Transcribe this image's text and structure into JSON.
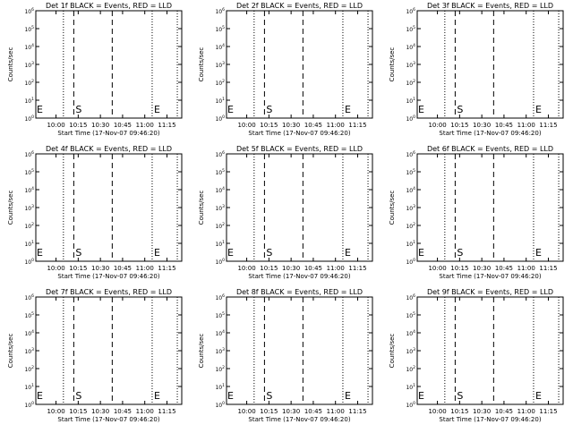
{
  "figure": {
    "colors": {
      "background": "#ffffff",
      "axes": "#000000",
      "events": "#000000",
      "lld": "#ff0000"
    }
  },
  "chart_data": [
    {
      "type": "line",
      "title": "Det 1f BLACK = Events, RED = LLD",
      "xlabel": "Start Time (17-Nov-07 09:46:20)",
      "ylabel": "Counts/sec",
      "x_ticks": [
        "10:00",
        "10:15",
        "10:30",
        "10:45",
        "11:00",
        "11:15"
      ],
      "y_ticks": [
        "10^0",
        "10^1",
        "10^2",
        "10^3",
        "10^4",
        "10^5",
        "10^6"
      ],
      "y_scale": "log",
      "ylim": [
        1,
        1000000
      ],
      "xlim": [
        "09:46:20",
        "11:25:00"
      ],
      "markers": [
        {
          "time": "10:05",
          "style": "dotted"
        },
        {
          "time": "10:12",
          "style": "dashed",
          "label": "S"
        },
        {
          "time": "10:38",
          "style": "dashed"
        },
        {
          "time": "11:05",
          "style": "dotted",
          "label": "E"
        },
        {
          "time": "11:22",
          "style": "dotted"
        }
      ],
      "annotations": [
        "E"
      ],
      "series": []
    },
    {
      "type": "line",
      "title": "Det 2f BLACK = Events, RED = LLD",
      "xlabel": "Start Time (17-Nov-07 09:46:20)",
      "ylabel": "Counts/sec",
      "x_ticks": [
        "10:00",
        "10:15",
        "10:30",
        "10:45",
        "11:00",
        "11:15"
      ],
      "y_ticks": [
        "10^0",
        "10^1",
        "10^2",
        "10^3",
        "10^4",
        "10^5",
        "10^6"
      ],
      "y_scale": "log",
      "ylim": [
        1,
        1000000
      ],
      "xlim": [
        "09:46:20",
        "11:25:00"
      ],
      "markers": [
        {
          "time": "10:05",
          "style": "dotted"
        },
        {
          "time": "10:12",
          "style": "dashed",
          "label": "S"
        },
        {
          "time": "10:38",
          "style": "dashed"
        },
        {
          "time": "11:05",
          "style": "dotted",
          "label": "E"
        },
        {
          "time": "11:22",
          "style": "dotted"
        }
      ],
      "annotations": [
        "E"
      ],
      "series": []
    },
    {
      "type": "line",
      "title": "Det 3f BLACK = Events, RED = LLD",
      "xlabel": "Start Time (17-Nov-07 09:46:20)",
      "ylabel": "Counts/sec",
      "x_ticks": [
        "10:00",
        "10:15",
        "10:30",
        "10:45",
        "11:00",
        "11:15"
      ],
      "y_ticks": [
        "10^0",
        "10^1",
        "10^2",
        "10^3",
        "10^4",
        "10^5",
        "10^6"
      ],
      "y_scale": "log",
      "ylim": [
        1,
        1000000
      ],
      "xlim": [
        "09:46:20",
        "11:25:00"
      ],
      "markers": [
        {
          "time": "10:05",
          "style": "dotted"
        },
        {
          "time": "10:12",
          "style": "dashed",
          "label": "S"
        },
        {
          "time": "10:38",
          "style": "dashed"
        },
        {
          "time": "11:05",
          "style": "dotted",
          "label": "E"
        },
        {
          "time": "11:22",
          "style": "dotted"
        }
      ],
      "annotations": [
        "E"
      ],
      "series": []
    },
    {
      "type": "line",
      "title": "Det 4f BLACK = Events, RED = LLD",
      "xlabel": "Start Time (17-Nov-07 09:46:20)",
      "ylabel": "Counts/sec",
      "x_ticks": [
        "10:00",
        "10:15",
        "10:30",
        "10:45",
        "11:00",
        "11:15"
      ],
      "y_ticks": [
        "10^0",
        "10^1",
        "10^2",
        "10^3",
        "10^4",
        "10^5",
        "10^6"
      ],
      "y_scale": "log",
      "ylim": [
        1,
        1000000
      ],
      "xlim": [
        "09:46:20",
        "11:25:00"
      ],
      "markers": [
        {
          "time": "10:05",
          "style": "dotted"
        },
        {
          "time": "10:12",
          "style": "dashed",
          "label": "S"
        },
        {
          "time": "10:38",
          "style": "dashed"
        },
        {
          "time": "11:05",
          "style": "dotted",
          "label": "E"
        },
        {
          "time": "11:22",
          "style": "dotted"
        }
      ],
      "annotations": [
        "E"
      ],
      "series": []
    },
    {
      "type": "line",
      "title": "Det 5f BLACK = Events, RED = LLD",
      "xlabel": "Start Time (17-Nov-07 09:46:20)",
      "ylabel": "Counts/sec",
      "x_ticks": [
        "10:00",
        "10:15",
        "10:30",
        "10:45",
        "11:00",
        "11:15"
      ],
      "y_ticks": [
        "10^0",
        "10^1",
        "10^2",
        "10^3",
        "10^4",
        "10^5",
        "10^6"
      ],
      "y_scale": "log",
      "ylim": [
        1,
        1000000
      ],
      "xlim": [
        "09:46:20",
        "11:25:00"
      ],
      "markers": [
        {
          "time": "10:05",
          "style": "dotted"
        },
        {
          "time": "10:12",
          "style": "dashed",
          "label": "S"
        },
        {
          "time": "10:38",
          "style": "dashed"
        },
        {
          "time": "11:05",
          "style": "dotted",
          "label": "E"
        },
        {
          "time": "11:22",
          "style": "dotted"
        }
      ],
      "annotations": [
        "E"
      ],
      "series": []
    },
    {
      "type": "line",
      "title": "Det 6f BLACK = Events, RED = LLD",
      "xlabel": "Start Time (17-Nov-07 09:46:20)",
      "ylabel": "Counts/sec",
      "x_ticks": [
        "10:00",
        "10:15",
        "10:30",
        "10:45",
        "11:00",
        "11:15"
      ],
      "y_ticks": [
        "10^0",
        "10^1",
        "10^2",
        "10^3",
        "10^4",
        "10^5",
        "10^6"
      ],
      "y_scale": "log",
      "ylim": [
        1,
        1000000
      ],
      "xlim": [
        "09:46:20",
        "11:25:00"
      ],
      "markers": [
        {
          "time": "10:05",
          "style": "dotted"
        },
        {
          "time": "10:12",
          "style": "dashed",
          "label": "S"
        },
        {
          "time": "10:38",
          "style": "dashed"
        },
        {
          "time": "11:05",
          "style": "dotted",
          "label": "E"
        },
        {
          "time": "11:22",
          "style": "dotted"
        }
      ],
      "annotations": [
        "E"
      ],
      "series": []
    },
    {
      "type": "line",
      "title": "Det 7f BLACK = Events, RED = LLD",
      "xlabel": "Start Time (17-Nov-07 09:46:20)",
      "ylabel": "Counts/sec",
      "x_ticks": [
        "10:00",
        "10:15",
        "10:30",
        "10:45",
        "11:00",
        "11:15"
      ],
      "y_ticks": [
        "10^0",
        "10^1",
        "10^2",
        "10^3",
        "10^4",
        "10^5",
        "10^6"
      ],
      "y_scale": "log",
      "ylim": [
        1,
        1000000
      ],
      "xlim": [
        "09:46:20",
        "11:25:00"
      ],
      "markers": [
        {
          "time": "10:05",
          "style": "dotted"
        },
        {
          "time": "10:12",
          "style": "dashed",
          "label": "S"
        },
        {
          "time": "10:38",
          "style": "dashed"
        },
        {
          "time": "11:05",
          "style": "dotted",
          "label": "E"
        },
        {
          "time": "11:22",
          "style": "dotted"
        }
      ],
      "annotations": [
        "E"
      ],
      "series": []
    },
    {
      "type": "line",
      "title": "Det 8f BLACK = Events, RED = LLD",
      "xlabel": "Start Time (17-Nov-07 09:46:20)",
      "ylabel": "Counts/sec",
      "x_ticks": [
        "10:00",
        "10:15",
        "10:30",
        "10:45",
        "11:00",
        "11:15"
      ],
      "y_ticks": [
        "10^0",
        "10^1",
        "10^2",
        "10^3",
        "10^4",
        "10^5",
        "10^6"
      ],
      "y_scale": "log",
      "ylim": [
        1,
        1000000
      ],
      "xlim": [
        "09:46:20",
        "11:25:00"
      ],
      "markers": [
        {
          "time": "10:05",
          "style": "dotted"
        },
        {
          "time": "10:12",
          "style": "dashed",
          "label": "S"
        },
        {
          "time": "10:38",
          "style": "dashed"
        },
        {
          "time": "11:05",
          "style": "dotted",
          "label": "E"
        },
        {
          "time": "11:22",
          "style": "dotted"
        }
      ],
      "annotations": [
        "E"
      ],
      "series": []
    },
    {
      "type": "line",
      "title": "Det 9f BLACK = Events, RED = LLD",
      "xlabel": "Start Time (17-Nov-07 09:46:20)",
      "ylabel": "Counts/sec",
      "x_ticks": [
        "10:00",
        "10:15",
        "10:30",
        "10:45",
        "11:00",
        "11:15"
      ],
      "y_ticks": [
        "10^0",
        "10^1",
        "10^2",
        "10^3",
        "10^4",
        "10^5",
        "10^6"
      ],
      "y_scale": "log",
      "ylim": [
        1,
        1000000
      ],
      "xlim": [
        "09:46:20",
        "11:25:00"
      ],
      "markers": [
        {
          "time": "10:05",
          "style": "dotted"
        },
        {
          "time": "10:12",
          "style": "dashed",
          "label": "S"
        },
        {
          "time": "10:38",
          "style": "dashed"
        },
        {
          "time": "11:05",
          "style": "dotted",
          "label": "E"
        },
        {
          "time": "11:22",
          "style": "dotted"
        }
      ],
      "annotations": [
        "E"
      ],
      "series": []
    }
  ]
}
